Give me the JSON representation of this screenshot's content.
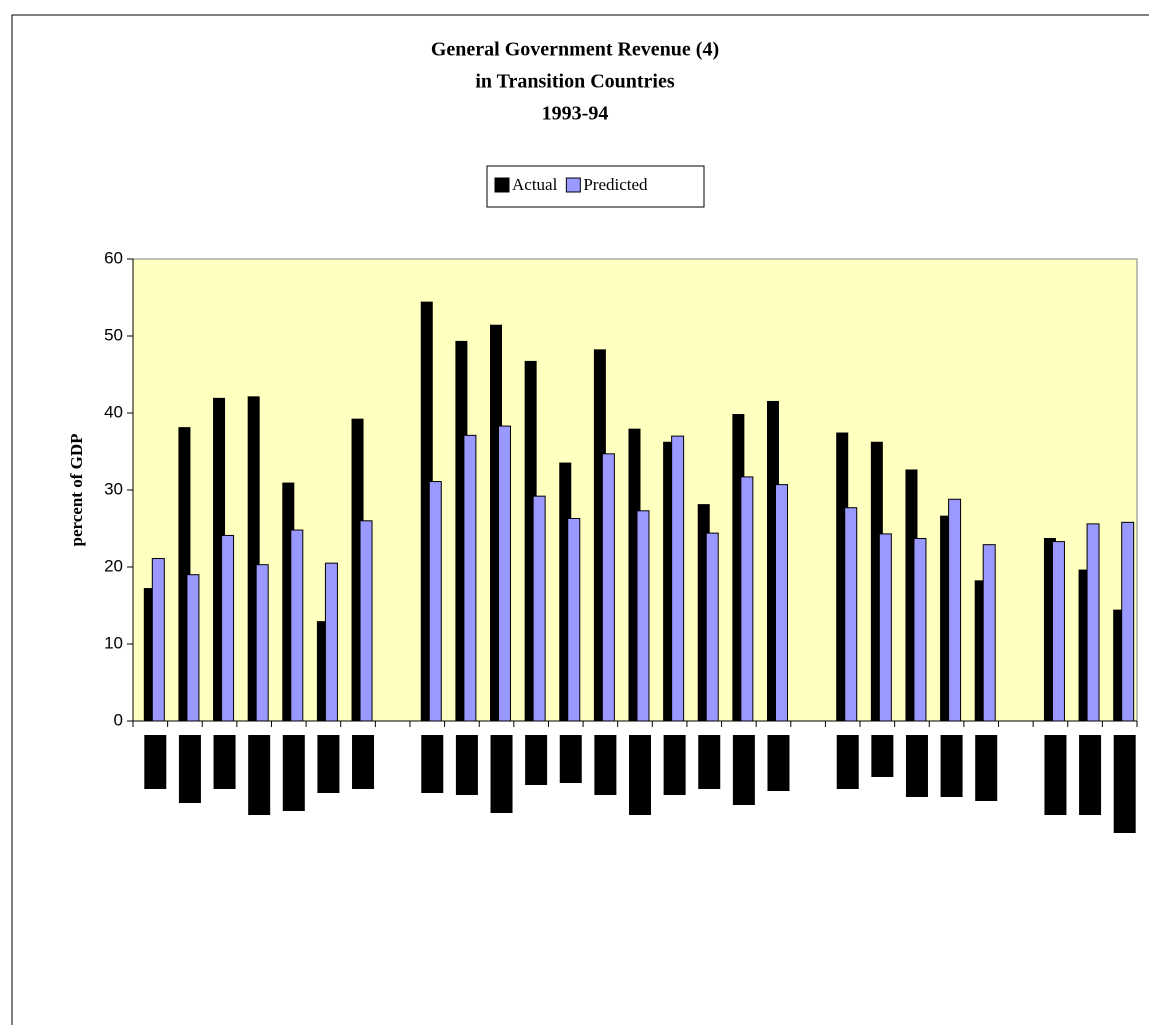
{
  "chart_data": {
    "type": "bar",
    "title": [
      "General Government Revenue (4)",
      "in Transition Countries",
      "1993-94"
    ],
    "y_label": "percent of GDP",
    "categories": [
      null,
      null,
      null,
      null,
      null,
      null,
      null,
      null,
      null,
      null,
      null,
      null,
      null,
      null,
      null,
      null,
      null,
      null,
      null,
      null,
      null,
      null,
      null,
      null,
      null,
      null,
      null,
      null,
      null
    ],
    "series": [
      {
        "name": "Actual",
        "color": "#000000",
        "values": [
          17.2,
          38.1,
          41.9,
          42.1,
          30.9,
          12.9,
          39.2,
          null,
          54.4,
          49.3,
          51.4,
          46.7,
          33.5,
          48.2,
          37.9,
          36.2,
          28.1,
          39.8,
          41.5,
          null,
          37.4,
          36.2,
          32.6,
          26.6,
          18.2,
          null,
          23.7,
          19.6,
          14.4
        ]
      },
      {
        "name": "Predicted",
        "color": "#9999ff",
        "values": [
          21.1,
          19.0,
          24.1,
          20.3,
          24.8,
          20.5,
          26.0,
          null,
          31.1,
          37.1,
          38.3,
          29.2,
          26.3,
          34.7,
          27.3,
          37.0,
          24.4,
          31.7,
          30.7,
          null,
          27.7,
          24.3,
          23.7,
          28.8,
          22.9,
          null,
          23.3,
          25.6,
          25.8
        ]
      }
    ],
    "ylim": [
      0,
      60
    ],
    "yticks": [
      0,
      10,
      20,
      30,
      40,
      50,
      60
    ],
    "grid": false,
    "legend": "top",
    "plot_background": "#ffffc0"
  }
}
